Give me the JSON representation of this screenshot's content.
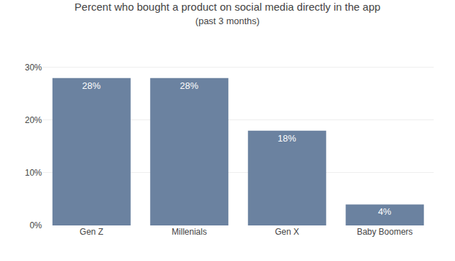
{
  "chart_data": {
    "type": "bar",
    "title": "Percent who bought a product on social media directly in the app",
    "subtitle": "(past 3 months)",
    "categories": [
      "Gen Z",
      "Millenials",
      "Gen X",
      "Baby Boomers"
    ],
    "values": [
      28,
      28,
      18,
      4
    ],
    "value_labels": [
      "28%",
      "28%",
      "18%",
      "4%"
    ],
    "data_labels": true,
    "color": "#6b82a0",
    "ylim": [
      0,
      32
    ],
    "yticks": [
      {
        "value": 0,
        "label": "0%"
      },
      {
        "value": 10,
        "label": "10%"
      },
      {
        "value": 20,
        "label": "20%"
      },
      {
        "value": 30,
        "label": "30%"
      }
    ],
    "grid": true
  }
}
